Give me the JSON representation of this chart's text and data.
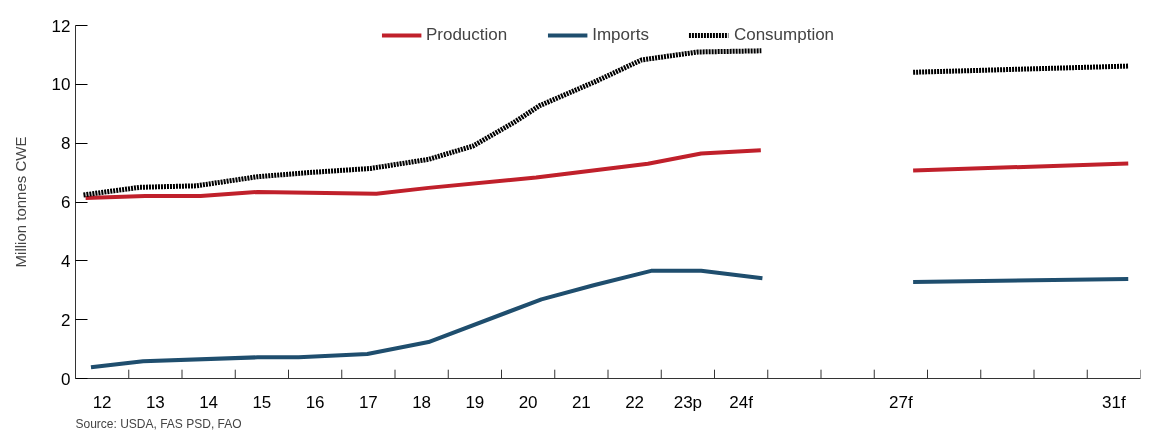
{
  "chart_data": {
    "type": "line",
    "ylabel": "Million tonnes CWE",
    "annotations": [
      "Source: USDA, FAS PSD, FAO"
    ],
    "xlim": [
      11.5,
      31.5
    ],
    "ylim": [
      0,
      12
    ],
    "yticks": [
      0,
      2,
      4,
      6,
      8,
      10,
      12
    ],
    "xticks": [
      12,
      13,
      14,
      15,
      16,
      17,
      18,
      19,
      20,
      21,
      22,
      {
        "value": 23,
        "label": "23p"
      },
      {
        "value": 24,
        "label": "24f"
      },
      {
        "value": 27,
        "label": "27f"
      },
      {
        "value": 31,
        "label": "31f"
      },
      {
        "value": 12.5,
        "label": null
      },
      {
        "value": 13.5,
        "label": null
      },
      {
        "value": 14.5,
        "label": null
      },
      {
        "value": 15.5,
        "label": null
      },
      {
        "value": 16.5,
        "label": null
      },
      {
        "value": 17.5,
        "label": null
      },
      {
        "value": 18.5,
        "label": null
      },
      {
        "value": 19.5,
        "label": null
      },
      {
        "value": 20.5,
        "label": null
      },
      {
        "value": 21.5,
        "label": null
      },
      {
        "value": 22.5,
        "label": null
      },
      {
        "value": 23.5,
        "label": null
      },
      {
        "value": 24.5,
        "label": null
      },
      {
        "value": 25.5,
        "label": null
      },
      {
        "value": 26.5,
        "label": null
      },
      {
        "value": 27.5,
        "label": null
      },
      {
        "value": 28.5,
        "label": null
      },
      {
        "value": 29.5,
        "label": null
      },
      {
        "value": 30.5,
        "label": null
      },
      {
        "value": 31.5,
        "label": null
      }
    ],
    "legend": "top",
    "series": [
      {
        "name": "Production",
        "color": "#c0202b",
        "line_style": "solid",
        "x": [
          11.69,
          12.81,
          13.85,
          14.92,
          17.15,
          18.13,
          20.15,
          22.25,
          23.25,
          24.37,
          25.8,
          27.23,
          31.27
        ],
        "values": [
          6.14,
          6.2,
          6.2,
          6.34,
          6.28,
          6.48,
          6.83,
          7.3,
          7.65,
          7.76,
          null,
          7.07,
          7.31
        ]
      },
      {
        "name": "Imports",
        "color": "#1f4e6e",
        "line_style": "solid",
        "x": [
          11.79,
          12.77,
          14.92,
          15.69,
          16.98,
          18.13,
          20.25,
          21.23,
          22.31,
          23.25,
          24.4,
          25.8,
          27.23,
          31.27
        ],
        "values": [
          0.38,
          0.59,
          0.72,
          0.72,
          0.83,
          1.24,
          2.69,
          3.17,
          3.66,
          3.66,
          3.41,
          null,
          3.28,
          3.38
        ]
      },
      {
        "name": "Consumption",
        "color": "#000000",
        "line_style": "dotted",
        "x": [
          11.65,
          12.71,
          13.77,
          14.92,
          15.88,
          17.04,
          18.13,
          18.96,
          19.73,
          20.21,
          21.27,
          22.13,
          23.19,
          24.38,
          25.8,
          27.23,
          31.27
        ],
        "values": [
          6.24,
          6.5,
          6.55,
          6.86,
          7.0,
          7.14,
          7.45,
          7.9,
          8.7,
          9.27,
          10.1,
          10.83,
          11.1,
          11.14,
          null,
          10.41,
          10.62
        ]
      }
    ]
  }
}
